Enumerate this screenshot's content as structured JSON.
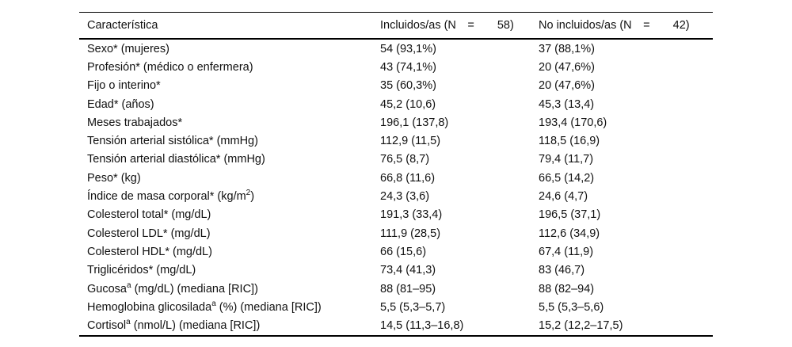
{
  "page": {
    "background_color": "#ffffff",
    "text_color": "#111111",
    "rule_color": "#000000"
  },
  "table": {
    "header": {
      "characteristic": "Característica",
      "included": "Incluidos/as (N =  58)",
      "not_included": "No incluidos/as (N =  42)"
    },
    "rows": [
      {
        "pre": "Sexo* (mujeres)",
        "sup": "",
        "post": "",
        "included": "54 (93,1%)",
        "not_included": "37 (88,1%)"
      },
      {
        "pre": "Profesión* (médico o enfermera)",
        "sup": "",
        "post": "",
        "included": "43 (74,1%)",
        "not_included": "20 (47,6%)"
      },
      {
        "pre": "Fijo o interino*",
        "sup": "",
        "post": "",
        "included": "35 (60,3%)",
        "not_included": "20 (47,6%)"
      },
      {
        "pre": "Edad* (años)",
        "sup": "",
        "post": "",
        "included": "45,2 (10,6)",
        "not_included": "45,3 (13,4)"
      },
      {
        "pre": "Meses trabajados*",
        "sup": "",
        "post": "",
        "included": "196,1 (137,8)",
        "not_included": "193,4 (170,6)"
      },
      {
        "pre": "Tensión arterial sistólica* (mmHg)",
        "sup": "",
        "post": "",
        "included": "112,9 (11,5)",
        "not_included": "118,5 (16,9)"
      },
      {
        "pre": "Tensión arterial diastólica* (mmHg)",
        "sup": "",
        "post": "",
        "included": "76,5 (8,7)",
        "not_included": "79,4 (11,7)"
      },
      {
        "pre": "Peso* (kg)",
        "sup": "",
        "post": "",
        "included": "66,8 (11,6)",
        "not_included": "66,5 (14,2)"
      },
      {
        "pre": "Índice de masa corporal* (kg/m",
        "sup": "2",
        "post": ")",
        "included": "24,3 (3,6)",
        "not_included": "24,6 (4,7)"
      },
      {
        "pre": "Colesterol total* (mg/dL)",
        "sup": "",
        "post": "",
        "included": "191,3 (33,4)",
        "not_included": "196,5 (37,1)"
      },
      {
        "pre": "Colesterol LDL* (mg/dL)",
        "sup": "",
        "post": "",
        "included": "111,9 (28,5)",
        "not_included": "112,6 (34,9)"
      },
      {
        "pre": "Colesterol HDL* (mg/dL)",
        "sup": "",
        "post": "",
        "included": "66 (15,6)",
        "not_included": "67,4 (11,9)"
      },
      {
        "pre": "Triglicéridos* (mg/dL)",
        "sup": "",
        "post": "",
        "included": "73,4 (41,3)",
        "not_included": "83 (46,7)"
      },
      {
        "pre": "Gucosa",
        "sup": "a",
        "post": " (mg/dL) (mediana [RIC])",
        "included": "88 (81–95)",
        "not_included": "88 (82–94)"
      },
      {
        "pre": "Hemoglobina glicosilada",
        "sup": "a",
        "post": " (%) (mediana [RIC])",
        "included": "5,5 (5,3–5,7)",
        "not_included": "5,5 (5,3–5,6)"
      },
      {
        "pre": "Cortisol",
        "sup": "a",
        "post": " (nmol/L) (mediana [RIC])",
        "included": "14,5 (11,3–16,8)",
        "not_included": "15,2 (12,2–17,5)"
      }
    ]
  }
}
